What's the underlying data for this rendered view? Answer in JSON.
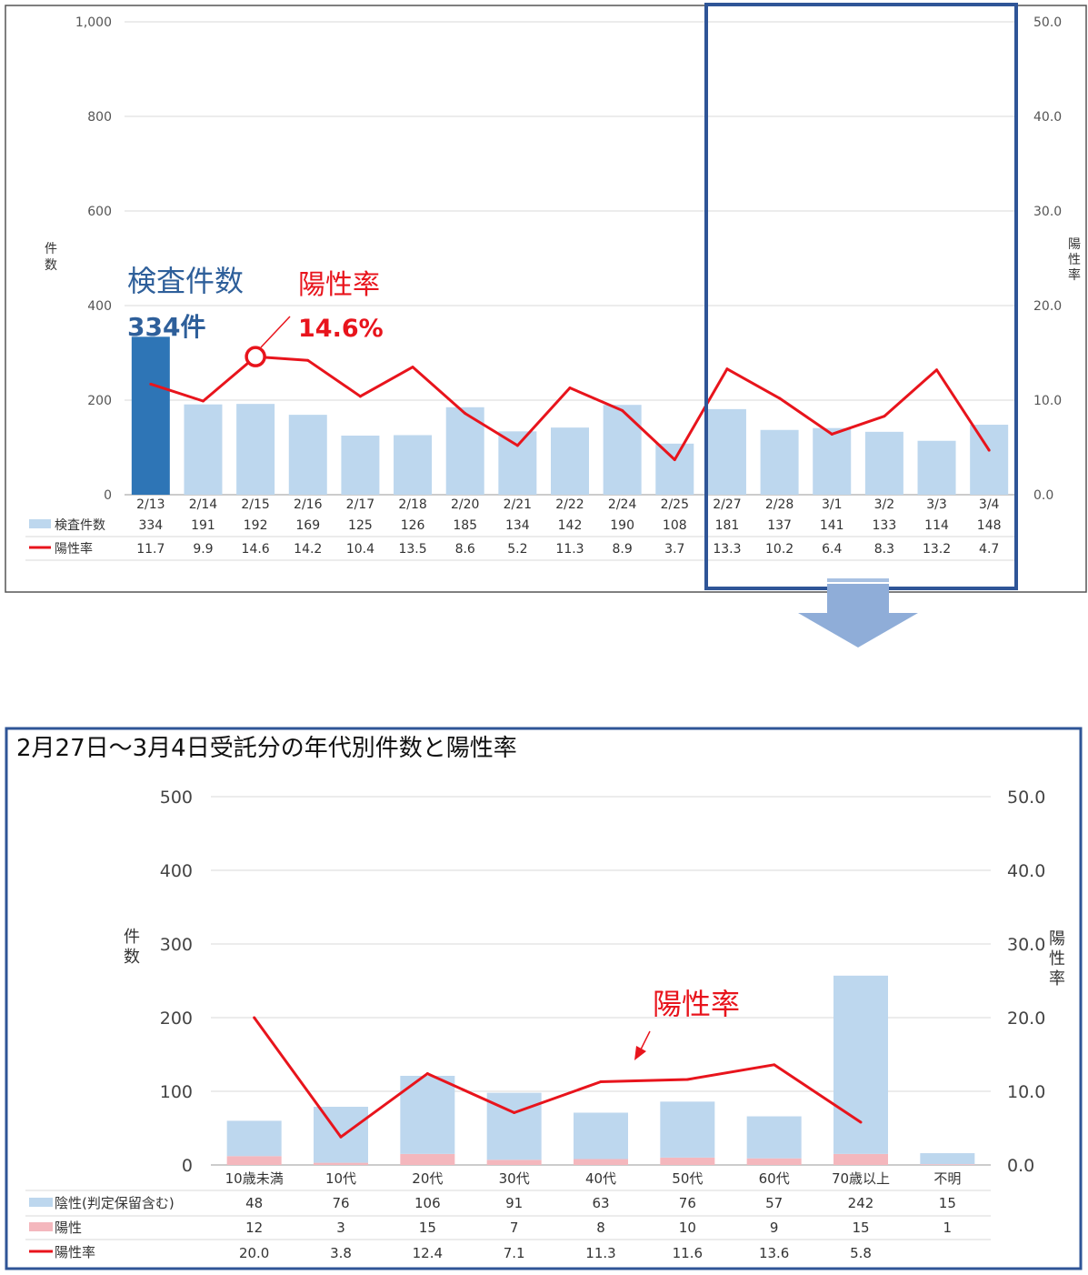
{
  "chart_data": [
    {
      "type": "bar",
      "title": "",
      "ylabel": "件数",
      "y2label": "陽性率",
      "ylim": [
        0,
        1000
      ],
      "y2lim": [
        0,
        50
      ],
      "yticks": [
        "0",
        "200",
        "400",
        "600",
        "800",
        "1,000"
      ],
      "y2ticks": [
        "0.0",
        "10.0",
        "20.0",
        "30.0",
        "40.0",
        "50.0"
      ],
      "categories": [
        "2/13",
        "2/14",
        "2/15",
        "2/16",
        "2/17",
        "2/18",
        "2/20",
        "2/21",
        "2/22",
        "2/24",
        "2/25",
        "2/27",
        "2/28",
        "3/1",
        "3/2",
        "3/3",
        "3/4"
      ],
      "series": [
        {
          "name": "検査件数",
          "type": "bar",
          "axis": "left",
          "values": [
            334,
            191,
            192,
            169,
            125,
            126,
            185,
            134,
            142,
            190,
            108,
            181,
            137,
            141,
            133,
            114,
            148
          ]
        },
        {
          "name": "陽性率",
          "type": "line",
          "axis": "right",
          "values": [
            11.7,
            9.9,
            14.6,
            14.2,
            10.4,
            13.5,
            8.6,
            5.2,
            11.3,
            8.9,
            3.7,
            13.3,
            10.2,
            6.4,
            8.3,
            13.2,
            4.7
          ]
        }
      ],
      "value_labels": {
        "検査件数": [
          "334",
          "191",
          "192",
          "169",
          "125",
          "126",
          "185",
          "134",
          "142",
          "190",
          "108",
          "181",
          "137",
          "141",
          "133",
          "114",
          "148"
        ],
        "陽性率": [
          "11.7",
          "9.9",
          "14.6",
          "14.2",
          "10.4",
          "13.5",
          "8.6",
          "5.2",
          "11.3",
          "8.9",
          "3.7",
          "13.3",
          "10.2",
          "6.4",
          "8.3",
          "13.2",
          "4.7"
        ]
      },
      "annotations": {
        "count_title": "検査件数",
        "count_value": "334件",
        "rate_title": "陽性率",
        "rate_value": "14.6%"
      },
      "colors": {
        "bar": "#bdd7ee",
        "bar_highlight": "#2e75b6",
        "line": "#e8141c",
        "annotation_blue": "#2e5f9a",
        "frame": "#2f5597"
      }
    },
    {
      "type": "bar",
      "title": "2月27日～3月4日受託分の年代別件数と陽性率",
      "ylabel": "件数",
      "y2label": "陽性率",
      "ylim": [
        0,
        500
      ],
      "y2lim": [
        0,
        50
      ],
      "yticks": [
        "0",
        "100",
        "200",
        "300",
        "400",
        "500"
      ],
      "y2ticks": [
        "0.0",
        "10.0",
        "20.0",
        "30.0",
        "40.0",
        "50.0"
      ],
      "categories": [
        "10歳未満",
        "10代",
        "20代",
        "30代",
        "40代",
        "50代",
        "60代",
        "70歳以上",
        "不明"
      ],
      "series": [
        {
          "name": "陰性(判定保留含む)",
          "type": "stacked_bar",
          "axis": "left",
          "values": [
            48,
            76,
            106,
            91,
            63,
            76,
            57,
            242,
            15
          ]
        },
        {
          "name": "陽性",
          "type": "stacked_bar",
          "axis": "left",
          "values": [
            12,
            3,
            15,
            7,
            8,
            10,
            9,
            15,
            1
          ]
        },
        {
          "name": "陽性率",
          "type": "line",
          "axis": "right",
          "values": [
            20.0,
            3.8,
            12.4,
            7.1,
            11.3,
            11.6,
            13.6,
            5.8,
            null
          ]
        }
      ],
      "value_labels": {
        "陰性(判定保留含む)": [
          "48",
          "76",
          "106",
          "91",
          "63",
          "76",
          "57",
          "242",
          "15"
        ],
        "陽性": [
          "12",
          "3",
          "15",
          "7",
          "8",
          "10",
          "9",
          "15",
          "1"
        ],
        "陽性率": [
          "20.0",
          "3.8",
          "12.4",
          "7.1",
          "11.3",
          "11.6",
          "13.6",
          "5.8",
          ""
        ]
      },
      "annotations": {
        "rate_title": "陽性率"
      },
      "colors": {
        "neg": "#bdd7ee",
        "pos": "#f4b7bd",
        "line": "#e8141c",
        "frame": "#2f5597"
      }
    }
  ]
}
